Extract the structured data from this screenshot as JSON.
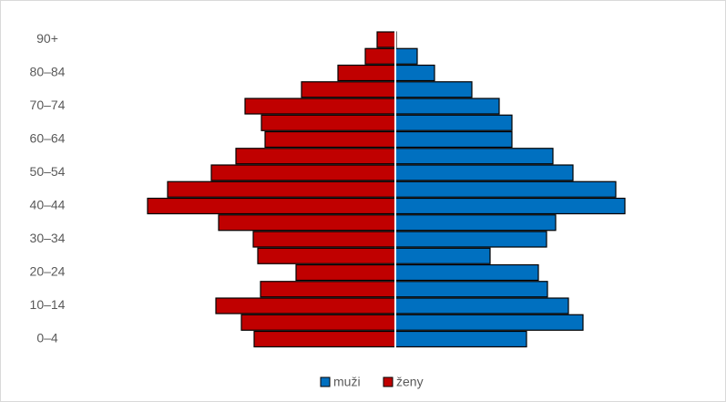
{
  "chart_data": {
    "type": "pyramid",
    "categories": [
      "0–4",
      null,
      "10–14",
      null,
      "20–24",
      null,
      "30–34",
      null,
      "40–44",
      null,
      "50–54",
      null,
      "60–64",
      null,
      "70–74",
      null,
      "80–84",
      null,
      "90+"
    ],
    "series": [
      {
        "name": "muži",
        "color": "#0070c0",
        "values": [
          144,
          206,
          190,
          167,
          157,
          104,
          166,
          176,
          252,
          242,
          195,
          173,
          128,
          128,
          114,
          84,
          43,
          24,
          1
        ]
      },
      {
        "name": "ženy",
        "color": "#c00000",
        "values": [
          155,
          169,
          197,
          148,
          109,
          151,
          156,
          194,
          272,
          250,
          202,
          175,
          143,
          147,
          165,
          103,
          63,
          33,
          20
        ]
      }
    ]
  }
}
